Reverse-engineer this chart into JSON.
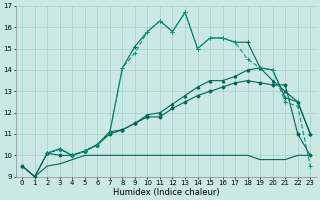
{
  "xlabel": "Humidex (Indice chaleur)",
  "xlim": [
    -0.5,
    23.5
  ],
  "ylim": [
    9,
    17
  ],
  "yticks": [
    9,
    10,
    11,
    12,
    13,
    14,
    15,
    16,
    17
  ],
  "xticks": [
    0,
    1,
    2,
    3,
    4,
    5,
    6,
    7,
    8,
    9,
    10,
    11,
    12,
    13,
    14,
    15,
    16,
    17,
    18,
    19,
    20,
    21,
    22,
    23
  ],
  "bg_color": "#cce8e3",
  "grid_color": "#a8d4cc",
  "dark": "#006655",
  "light": "#00997a",
  "line1_x": [
    0,
    1,
    2,
    3,
    4,
    5,
    6,
    7,
    8,
    9,
    10,
    11,
    12,
    13,
    14,
    15,
    16,
    17,
    18,
    19,
    20,
    21,
    22,
    23
  ],
  "line1_y": [
    9.5,
    9.0,
    9.5,
    9.6,
    9.8,
    10.0,
    10.0,
    10.0,
    10.0,
    10.0,
    10.0,
    10.0,
    10.0,
    10.0,
    10.0,
    10.0,
    10.0,
    10.0,
    10.0,
    9.8,
    9.8,
    9.8,
    10.0,
    10.0
  ],
  "line2_x": [
    0,
    1,
    2,
    3,
    4,
    5,
    6,
    7,
    8,
    9,
    10,
    11,
    12,
    13,
    14,
    15,
    16,
    17,
    18,
    19,
    20,
    21,
    22,
    23
  ],
  "line2_y": [
    9.5,
    9.0,
    10.1,
    10.0,
    10.0,
    10.2,
    10.5,
    11.0,
    11.2,
    11.5,
    11.8,
    11.8,
    12.2,
    12.5,
    12.8,
    13.0,
    13.2,
    13.4,
    13.5,
    13.4,
    13.3,
    13.3,
    11.0,
    10.0
  ],
  "line3_x": [
    0,
    1,
    2,
    3,
    4,
    5,
    6,
    7,
    8,
    9,
    10,
    11,
    12,
    13,
    14,
    15,
    16,
    17,
    18,
    19,
    20,
    21,
    22,
    23
  ],
  "line3_y": [
    9.5,
    9.0,
    10.1,
    10.3,
    10.0,
    10.2,
    10.5,
    11.1,
    11.2,
    11.5,
    11.9,
    12.0,
    12.4,
    12.8,
    13.2,
    13.5,
    13.5,
    13.7,
    14.0,
    14.1,
    13.5,
    13.0,
    12.5,
    11.0
  ],
  "line4_x": [
    2,
    3,
    4,
    5,
    6,
    7,
    8,
    9,
    10,
    11,
    12,
    13,
    14,
    15,
    16,
    17,
    18,
    19,
    20,
    21,
    22,
    23
  ],
  "line4_y": [
    10.1,
    10.3,
    10.0,
    10.2,
    10.5,
    11.1,
    14.1,
    15.1,
    15.8,
    16.3,
    15.8,
    16.7,
    15.0,
    15.5,
    15.5,
    15.3,
    15.3,
    14.1,
    14.0,
    12.7,
    12.5,
    11.0
  ],
  "line5_x": [
    2,
    3,
    4,
    5,
    6,
    7,
    8,
    9,
    10,
    11,
    12,
    13,
    14,
    15,
    16,
    17,
    18,
    19,
    20,
    21,
    22,
    23
  ],
  "line5_y": [
    10.1,
    10.3,
    10.0,
    10.2,
    10.5,
    11.1,
    14.1,
    14.8,
    15.8,
    16.3,
    15.8,
    16.7,
    15.0,
    15.5,
    15.5,
    15.3,
    14.5,
    14.1,
    14.0,
    12.5,
    12.3,
    9.5
  ]
}
